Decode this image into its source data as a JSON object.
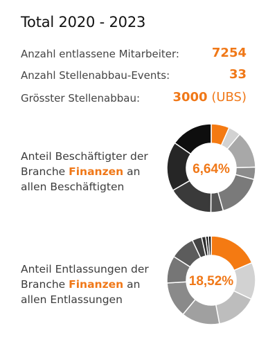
{
  "title": "Total 2020 - 2023",
  "stats": [
    {
      "label": "Anzahl entlassene Mitarbeiter:",
      "value": "7254",
      "unit": ""
    },
    {
      "label": "Anzahl Stellenabbau-Events:",
      "value": "33",
      "unit": ""
    },
    {
      "label": "Grösster Stellenabbau:",
      "value": "3000",
      "unit": " (UBS)"
    }
  ],
  "highlight_color": "#f07818",
  "chart_data": [
    {
      "type": "pie",
      "text_before": "Anteil Beschäftigter der Branche ",
      "text_highlight": "Finanzen",
      "text_after": " an allen Beschäftigten",
      "center_label": "6,64%",
      "highlight_category": "Finanzen",
      "values": [
        6.64,
        4.5,
        13.5,
        4.5,
        16.5,
        4.5,
        16.5,
        18.0,
        15.36
      ],
      "colors": [
        "#f47a12",
        "#d2d2d2",
        "#a8a8a8",
        "#8c8c8c",
        "#7a7a7a",
        "#555555",
        "#3a3a3a",
        "#262626",
        "#0e0e0e"
      ]
    },
    {
      "type": "pie",
      "text_before": "Anteil Entlassungen der Branche ",
      "text_highlight": "Finanzen",
      "text_after": " an allen Entlassungen",
      "center_label": "18,52%",
      "highlight_category": "Finanzen",
      "values": [
        18.52,
        13.5,
        15.0,
        14.0,
        13.0,
        10.0,
        9.0,
        3.5,
        1.5,
        1.0,
        1.0
      ],
      "colors": [
        "#f47a12",
        "#d2d2d2",
        "#bdbdbd",
        "#a0a0a0",
        "#8a8a8a",
        "#767676",
        "#5c5c5c",
        "#444444",
        "#2e2e2e",
        "#1a1a1a",
        "#0b0b0b"
      ]
    }
  ]
}
